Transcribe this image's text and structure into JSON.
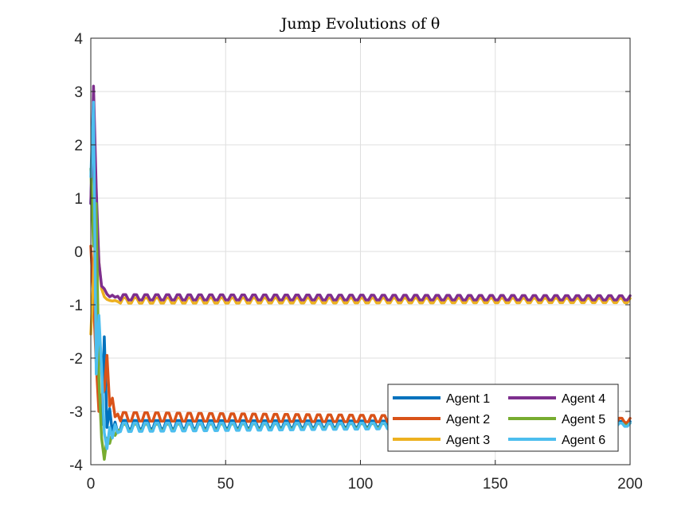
{
  "chart_data": {
    "type": "line",
    "title": "Jump Evolutions of θ",
    "xlabel": "",
    "ylabel": "",
    "xlim": [
      0,
      200
    ],
    "ylim": [
      -4,
      4
    ],
    "xticks": [
      0,
      50,
      100,
      150,
      200
    ],
    "yticks": [
      -4,
      -3,
      -2,
      -1,
      0,
      1,
      2,
      3,
      4
    ],
    "xtick_labels": [
      "0",
      "50",
      "100",
      "150",
      "200"
    ],
    "ytick_labels": [
      "-4",
      "-3",
      "-2",
      "-1",
      "0",
      "1",
      "2",
      "3",
      "4"
    ],
    "grid": true,
    "legend_position": "bottom-right",
    "legend_columns": 2,
    "series": [
      {
        "name": "Agent 1",
        "color": "#0072BD",
        "initial": [
          [
            0,
            0.9
          ],
          [
            1,
            2.6
          ],
          [
            2,
            -1.0
          ],
          [
            3,
            -2.6
          ],
          [
            4,
            -3.25
          ],
          [
            5,
            -1.6
          ],
          [
            6,
            -3.3
          ],
          [
            7,
            -2.95
          ],
          [
            8,
            -3.4
          ],
          [
            9,
            -3.2
          ],
          [
            10,
            -3.4
          ]
        ],
        "settle": -3.25,
        "amp_start": 0.08,
        "amp_end": 0.03,
        "final": -3.22
      },
      {
        "name": "Agent 2",
        "color": "#D95319",
        "initial": [
          [
            0,
            0.1
          ],
          [
            1,
            -0.9
          ],
          [
            2,
            -2.1
          ],
          [
            3,
            -3.0
          ],
          [
            4,
            -2.7
          ],
          [
            5,
            -2.6
          ],
          [
            6,
            -1.95
          ],
          [
            7,
            -2.9
          ],
          [
            8,
            -2.75
          ],
          [
            9,
            -3.1
          ],
          [
            10,
            -3.05
          ]
        ],
        "settle": -3.1,
        "amp_start": 0.08,
        "amp_end": 0.04,
        "final": -3.17
      },
      {
        "name": "Agent 3",
        "color": "#EDB120",
        "initial": [
          [
            0,
            -1.55
          ],
          [
            1,
            -0.5
          ],
          [
            2,
            0.85
          ],
          [
            3,
            -0.2
          ],
          [
            4,
            -0.7
          ],
          [
            5,
            -0.85
          ],
          [
            6,
            -0.9
          ],
          [
            7,
            -0.92
          ],
          [
            8,
            -0.93
          ],
          [
            9,
            -0.92
          ],
          [
            10,
            -0.94
          ]
        ],
        "settle": -0.92,
        "amp_start": 0.05,
        "amp_end": 0.04,
        "final": -0.92
      },
      {
        "name": "Agent 4",
        "color": "#7E2F8E",
        "initial": [
          [
            0,
            0.9
          ],
          [
            1,
            3.1
          ],
          [
            2,
            1.2
          ],
          [
            3,
            -0.2
          ],
          [
            4,
            -0.65
          ],
          [
            5,
            -0.7
          ],
          [
            6,
            -0.8
          ],
          [
            7,
            -0.85
          ],
          [
            8,
            -0.82
          ],
          [
            9,
            -0.86
          ],
          [
            10,
            -0.84
          ]
        ],
        "settle": -0.86,
        "amp_start": 0.05,
        "amp_end": 0.04,
        "final": -0.87
      },
      {
        "name": "Agent 5",
        "color": "#77AC30",
        "initial": [
          [
            0,
            1.55
          ],
          [
            1,
            0.1
          ],
          [
            2,
            0.9
          ],
          [
            3,
            -2.4
          ],
          [
            4,
            -3.5
          ],
          [
            5,
            -3.9
          ],
          [
            6,
            -3.5
          ],
          [
            7,
            -3.6
          ],
          [
            8,
            -3.4
          ],
          [
            9,
            -3.45
          ],
          [
            10,
            -3.35
          ]
        ],
        "settle": -3.3,
        "amp_start": 0.06,
        "amp_end": 0.02,
        "final": -3.24
      },
      {
        "name": "Agent 6",
        "color": "#4DBEEE",
        "initial": [
          [
            0,
            1.4
          ],
          [
            1,
            2.8
          ],
          [
            2,
            -2.3
          ],
          [
            3,
            -1.2
          ],
          [
            4,
            -2.2
          ],
          [
            5,
            -3.4
          ],
          [
            6,
            -3.7
          ],
          [
            7,
            -3.3
          ],
          [
            8,
            -3.5
          ],
          [
            9,
            -3.25
          ],
          [
            10,
            -3.4
          ]
        ],
        "settle": -3.3,
        "amp_start": 0.08,
        "amp_end": 0.03,
        "final": -3.25
      }
    ]
  }
}
